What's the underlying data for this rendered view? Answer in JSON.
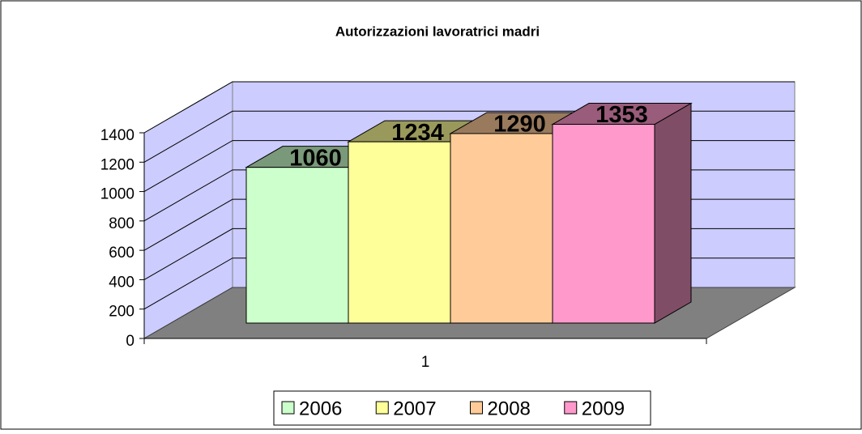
{
  "chart_data": {
    "type": "bar3d",
    "title": "Autorizzazioni lavoratrici madri",
    "categories": [
      "1"
    ],
    "series": [
      {
        "name": "2006",
        "color": "#ccffcc",
        "values": [
          1060
        ]
      },
      {
        "name": "2007",
        "color": "#ffff99",
        "values": [
          1234
        ]
      },
      {
        "name": "2008",
        "color": "#ffcc99",
        "values": [
          1290
        ]
      },
      {
        "name": "2009",
        "color": "#ff99cc",
        "values": [
          1353
        ]
      }
    ],
    "ylim": [
      0,
      1400
    ],
    "yticks": [
      0,
      200,
      400,
      600,
      800,
      1000,
      1200,
      1400
    ],
    "grid": true,
    "legend": "bottom"
  }
}
